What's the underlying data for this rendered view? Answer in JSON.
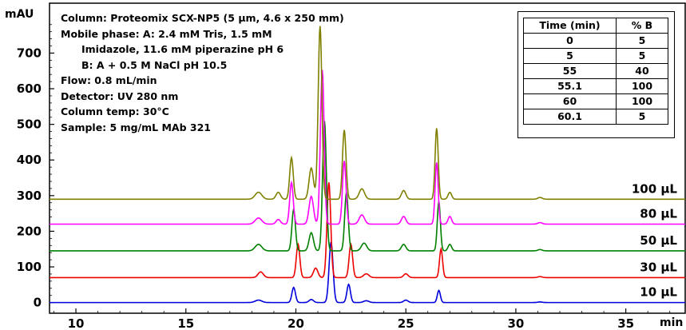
{
  "chart_data": {
    "type": "line",
    "ylabel": "mAU",
    "xlabel": "min",
    "xlim": [
      8.8,
      37.7
    ],
    "ylim": [
      -30,
      840
    ],
    "xticks": [
      10,
      15,
      20,
      25,
      30,
      35
    ],
    "yticks": [
      0,
      100,
      200,
      300,
      400,
      500,
      600,
      700
    ],
    "annotation_lines": [
      "Column: Proteomix SCX-NP5 (5 µm, 4.6 x 250 mm)",
      "Mobile phase: A: 2.4 mM Tris, 1.5 mM",
      "Imidazole, 11.6 mM piperazine pH 6",
      "B: A + 0.5 M NaCl pH 10.5",
      "Flow: 0.8 mL/min",
      "Detector: UV 280 nm",
      "Column temp: 30°C",
      "Sample: 5 mg/mL MAb 321"
    ],
    "gradient_table": {
      "headers": [
        "Time (min)",
        "% B"
      ],
      "rows": [
        [
          "0",
          "5"
        ],
        [
          "5",
          "5"
        ],
        [
          "55",
          "40"
        ],
        [
          "55.1",
          "100"
        ],
        [
          "60",
          "100"
        ],
        [
          "60.1",
          "5"
        ]
      ]
    },
    "series": [
      {
        "name": "10 µL",
        "color": "#0000dd",
        "offset": 0,
        "scale": 0.35,
        "peaks": [
          [
            18.3,
            0.04,
            0.15
          ],
          [
            19.9,
            0.25,
            0.08
          ],
          [
            20.7,
            0.05,
            0.1
          ],
          [
            21.6,
            1.0,
            0.09
          ],
          [
            22.4,
            0.3,
            0.08
          ],
          [
            23.2,
            0.03,
            0.12
          ],
          [
            25.0,
            0.04,
            0.1
          ],
          [
            26.5,
            0.2,
            0.07
          ],
          [
            31.1,
            0.01,
            0.1
          ]
        ]
      },
      {
        "name": "30 µL",
        "color": "#ee0000",
        "offset": 70,
        "scale": 0.55,
        "peaks": [
          [
            18.4,
            0.06,
            0.12
          ],
          [
            20.1,
            0.35,
            0.08
          ],
          [
            20.9,
            0.1,
            0.1
          ],
          [
            21.5,
            1.0,
            0.085
          ],
          [
            22.5,
            0.35,
            0.08
          ],
          [
            23.2,
            0.04,
            0.12
          ],
          [
            25.0,
            0.04,
            0.1
          ],
          [
            26.6,
            0.3,
            0.07
          ],
          [
            31.1,
            0.01,
            0.1
          ]
        ]
      },
      {
        "name": "50 µL",
        "color": "#008000",
        "offset": 145,
        "scale": 0.75,
        "peaks": [
          [
            18.3,
            0.05,
            0.15
          ],
          [
            19.9,
            0.32,
            0.08
          ],
          [
            20.7,
            0.14,
            0.1
          ],
          [
            21.3,
            1.0,
            0.085
          ],
          [
            22.3,
            0.45,
            0.08
          ],
          [
            23.1,
            0.06,
            0.12
          ],
          [
            24.9,
            0.05,
            0.1
          ],
          [
            26.5,
            0.38,
            0.07
          ],
          [
            27.0,
            0.05,
            0.08
          ],
          [
            31.1,
            0.01,
            0.1
          ]
        ]
      },
      {
        "name": "80 µL",
        "color": "#ff00ff",
        "offset": 220,
        "scale": 0.89,
        "peaks": [
          [
            18.3,
            0.04,
            0.15
          ],
          [
            19.2,
            0.03,
            0.1
          ],
          [
            19.8,
            0.27,
            0.08
          ],
          [
            20.7,
            0.18,
            0.1
          ],
          [
            21.2,
            1.0,
            0.085
          ],
          [
            22.2,
            0.41,
            0.08
          ],
          [
            23.0,
            0.06,
            0.12
          ],
          [
            24.9,
            0.05,
            0.1
          ],
          [
            26.4,
            0.4,
            0.07
          ],
          [
            27.0,
            0.05,
            0.08
          ],
          [
            31.1,
            0.01,
            0.1
          ]
        ]
      },
      {
        "name": "100 µL",
        "color": "#808000",
        "offset": 290,
        "scale": 1.0,
        "peaks": [
          [
            18.3,
            0.04,
            0.15
          ],
          [
            19.2,
            0.04,
            0.1
          ],
          [
            19.8,
            0.24,
            0.08
          ],
          [
            20.7,
            0.18,
            0.1
          ],
          [
            21.1,
            1.0,
            0.085
          ],
          [
            22.2,
            0.4,
            0.08
          ],
          [
            23.0,
            0.06,
            0.12
          ],
          [
            24.9,
            0.05,
            0.1
          ],
          [
            26.4,
            0.41,
            0.07
          ],
          [
            27.0,
            0.04,
            0.08
          ],
          [
            31.1,
            0.01,
            0.1
          ]
        ],
        "peak_height": 486
      }
    ]
  }
}
